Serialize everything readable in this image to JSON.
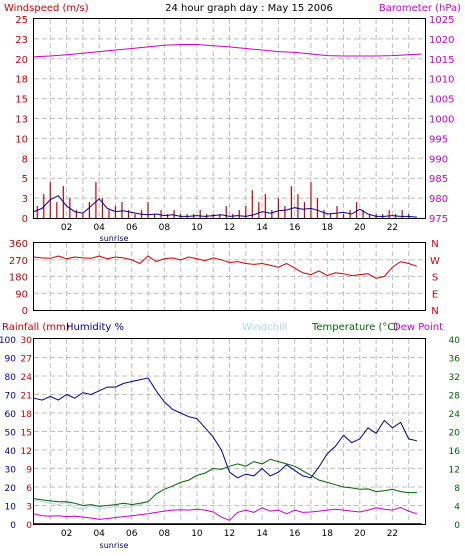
{
  "chart_data": [
    {
      "type": "line",
      "title": "24 hour graph day : May 15 2006",
      "ylabel_left": "Windspeed (m/s)",
      "ylabel_right": "Barometer (hPa)",
      "x_ticks": [
        "02",
        "04",
        "06",
        "08",
        "10",
        "12",
        "14",
        "16",
        "18",
        "20",
        "22"
      ],
      "x_annotation": "sunrise",
      "y_left_ticks": [
        "25",
        "23",
        "20",
        "18",
        "15",
        "13",
        "10",
        "8",
        "5",
        "3",
        "0"
      ],
      "y_left_range": [
        0,
        25
      ],
      "y_right_ticks": [
        "1025",
        "1020",
        "1015",
        "1010",
        "1005",
        "1000",
        "995",
        "990",
        "985",
        "980",
        "975"
      ],
      "y_right_range": [
        975,
        1025
      ],
      "colors": {
        "windspeed": "#cc0000",
        "average": "#000099",
        "barometer": "#cc00cc"
      },
      "grid": true,
      "series": [
        {
          "name": "Windspeed (m/s)",
          "axis": "left",
          "color": "#cc0000",
          "style": "bars",
          "x": [
            0.2,
            0.6,
            1.0,
            1.4,
            1.8,
            2.2,
            2.6,
            3.0,
            3.4,
            3.8,
            4.2,
            4.6,
            5.0,
            5.4,
            5.8,
            6.2,
            6.6,
            7.0,
            7.4,
            7.8,
            8.2,
            8.6,
            9.0,
            9.4,
            9.8,
            10.2,
            10.6,
            11.0,
            11.4,
            11.8,
            12.2,
            12.6,
            13.0,
            13.4,
            13.8,
            14.2,
            14.6,
            15.0,
            15.4,
            15.8,
            16.2,
            16.6,
            17.0,
            17.4,
            17.8,
            18.2,
            18.6,
            19.0,
            19.4,
            19.8,
            20.2,
            20.6,
            21.0,
            21.4,
            21.8,
            22.2,
            22.6,
            23.0
          ],
          "values": [
            1.5,
            3.0,
            4.5,
            2.0,
            4.0,
            2.5,
            1.0,
            0.5,
            2.0,
            4.5,
            2.5,
            1.0,
            1.5,
            2.0,
            1.0,
            0.5,
            1.0,
            2.0,
            0.5,
            1.0,
            0.5,
            1.0,
            0.5,
            0.5,
            0.5,
            1.0,
            0.5,
            0.5,
            0.5,
            1.5,
            0.5,
            1.0,
            1.5,
            3.5,
            2.0,
            3.0,
            1.0,
            2.5,
            1.5,
            4.0,
            3.0,
            2.0,
            4.5,
            2.5,
            1.0,
            0.5,
            1.5,
            0.5,
            1.0,
            2.0,
            1.0,
            0.5,
            0.5,
            0.5,
            1.0,
            0.5,
            1.0,
            0.5
          ]
        },
        {
          "name": "Average windspeed",
          "axis": "left",
          "color": "#000099",
          "style": "line",
          "x": [
            0,
            0.5,
            1,
            1.5,
            2,
            2.5,
            3,
            3.5,
            4,
            4.5,
            5,
            5.5,
            6,
            6.5,
            7,
            7.5,
            8,
            8.5,
            9,
            9.5,
            10,
            10.5,
            11,
            11.5,
            12,
            12.5,
            13,
            13.5,
            14,
            14.5,
            15,
            15.5,
            16,
            16.5,
            17,
            17.5,
            18,
            18.5,
            19,
            19.5,
            20,
            20.5,
            21,
            21.5,
            22,
            22.5,
            23,
            23.5
          ],
          "values": [
            0.8,
            1.2,
            2.3,
            2.8,
            1.5,
            0.8,
            0.6,
            1.5,
            2.4,
            1.2,
            0.8,
            0.9,
            0.7,
            0.5,
            0.4,
            0.5,
            0.3,
            0.4,
            0.2,
            0.2,
            0.3,
            0.2,
            0.3,
            0.4,
            0.2,
            0.3,
            0.2,
            0.4,
            0.8,
            0.6,
            0.9,
            1.0,
            1.3,
            1.1,
            1.2,
            0.9,
            0.5,
            0.6,
            0.7,
            0.5,
            1.1,
            0.5,
            0.2,
            0.2,
            0.3,
            0.2,
            0.2,
            0.1
          ]
        },
        {
          "name": "Barometer (hPa)",
          "axis": "right",
          "color": "#cc00cc",
          "style": "line",
          "x": [
            0,
            1,
            2,
            3,
            4,
            5,
            6,
            7,
            8,
            9,
            10,
            11,
            12,
            13,
            14,
            15,
            16,
            17,
            18,
            19,
            20,
            21,
            22,
            23,
            23.8
          ],
          "values": [
            1015.5,
            1015.7,
            1016.0,
            1016.4,
            1016.8,
            1017.2,
            1017.6,
            1018.0,
            1018.4,
            1018.6,
            1018.6,
            1018.3,
            1018.0,
            1017.6,
            1017.2,
            1016.8,
            1016.6,
            1016.2,
            1015.8,
            1015.7,
            1015.7,
            1015.7,
            1015.8,
            1016.0,
            1016.2
          ]
        }
      ]
    },
    {
      "type": "line",
      "x_ticks": [
        "02",
        "04",
        "06",
        "08",
        "10",
        "12",
        "14",
        "16",
        "18",
        "20",
        "22"
      ],
      "y_left_ticks": [
        "360",
        "270",
        "180",
        "90",
        "0"
      ],
      "y_left_range": [
        0,
        360
      ],
      "y_right_ticks": [
        "N",
        "W",
        "S",
        "E",
        "N"
      ],
      "grid": true,
      "series": [
        {
          "name": "Wind direction",
          "color": "#cc0000",
          "x": [
            0,
            0.5,
            1,
            1.5,
            2,
            2.5,
            3,
            3.5,
            4,
            4.5,
            5,
            5.5,
            6,
            6.5,
            7,
            7.5,
            8,
            8.5,
            9,
            9.5,
            10,
            10.5,
            11,
            11.5,
            12,
            12.5,
            13,
            13.5,
            14,
            14.5,
            15,
            15.5,
            16,
            16.5,
            17,
            17.5,
            18,
            18.5,
            19,
            19.5,
            20,
            20.5,
            21,
            21.5,
            22,
            22.5,
            23,
            23.5
          ],
          "values": [
            285,
            280,
            278,
            290,
            275,
            285,
            280,
            278,
            290,
            275,
            285,
            280,
            270,
            250,
            290,
            260,
            275,
            280,
            270,
            285,
            275,
            265,
            280,
            270,
            255,
            260,
            250,
            245,
            250,
            240,
            230,
            250,
            225,
            200,
            190,
            210,
            185,
            200,
            195,
            185,
            190,
            195,
            170,
            180,
            230,
            260,
            250,
            235
          ]
        }
      ]
    },
    {
      "type": "line",
      "left_labels": [
        "Rainfall (mm)",
        "Humidity %"
      ],
      "right_labels": [
        "Windchill",
        "Temperature (°C)",
        "Dew Point"
      ],
      "x_ticks": [
        "02",
        "04",
        "06",
        "08",
        "10",
        "12",
        "14",
        "16",
        "18",
        "20",
        "22"
      ],
      "x_annotation": "sunrise",
      "rain_ticks": [
        "30",
        "27",
        "24",
        "21",
        "18",
        "15",
        "12",
        "9",
        "6",
        "3",
        "0"
      ],
      "rain_range": [
        0,
        30
      ],
      "humidity_ticks": [
        "100",
        "90",
        "80",
        "70",
        "60",
        "50",
        "40",
        "30",
        "20",
        "10",
        "0"
      ],
      "humidity_range": [
        0,
        100
      ],
      "temp_ticks": [
        "40",
        "36",
        "32",
        "28",
        "24",
        "20",
        "16",
        "12",
        "8",
        "4",
        "0"
      ],
      "temp_range": [
        0,
        40
      ],
      "colors": {
        "rain": "#cc0000",
        "humidity": "#000099",
        "windchill": "#add8e6",
        "temperature": "#006600",
        "dewpoint": "#cc00cc"
      },
      "grid": true,
      "series": [
        {
          "name": "Humidity %",
          "axis": "humidity",
          "color": "#000099",
          "x": [
            0,
            0.5,
            1,
            1.5,
            2,
            2.5,
            3,
            3.5,
            4,
            4.5,
            5,
            5.5,
            6,
            6.5,
            7,
            7.5,
            8,
            8.5,
            9,
            9.5,
            10,
            10.5,
            11,
            11.5,
            12,
            12.5,
            13,
            13.5,
            14,
            14.5,
            15,
            15.5,
            16,
            16.5,
            17,
            17.5,
            18,
            18.5,
            19,
            19.5,
            20,
            20.5,
            21,
            21.5,
            22,
            22.5,
            23,
            23.5
          ],
          "values": [
            68,
            67,
            69,
            67,
            70,
            68,
            71,
            70,
            72,
            74,
            74,
            76,
            77,
            78,
            79,
            72,
            66,
            62,
            60,
            58,
            57,
            52,
            47,
            40,
            28,
            25,
            27,
            26,
            30,
            26,
            28,
            32,
            29,
            26,
            25,
            31,
            38,
            42,
            48,
            44,
            46,
            52,
            49,
            56,
            52,
            55,
            46,
            45
          ]
        },
        {
          "name": "Windchill",
          "axis": "temp",
          "color": "#add8e6",
          "x": [
            0,
            0.5,
            1,
            1.5,
            2,
            2.5,
            3,
            3.5,
            4,
            4.5,
            5,
            5.5,
            6,
            6.5,
            7
          ],
          "values": [
            5.2,
            4.8,
            4.5,
            4.2,
            4.8,
            3.5,
            3.2,
            4.0,
            3.2,
            3.5,
            3.8,
            3.5,
            3.8,
            4.2,
            5.0
          ]
        },
        {
          "name": "Temperature (°C)",
          "axis": "temp",
          "color": "#006600",
          "x": [
            0,
            0.5,
            1,
            1.5,
            2,
            2.5,
            3,
            3.5,
            4,
            4.5,
            5,
            5.5,
            6,
            6.5,
            7,
            7.5,
            8,
            8.5,
            9,
            9.5,
            10,
            10.5,
            11,
            11.5,
            12,
            12.5,
            13,
            13.5,
            14,
            14.5,
            15,
            15.5,
            16,
            16.5,
            17,
            17.5,
            18,
            18.5,
            19,
            19.5,
            20,
            20.5,
            21,
            21.5,
            22,
            22.5,
            23,
            23.5
          ],
          "values": [
            5.5,
            5.2,
            5.0,
            4.8,
            4.8,
            4.5,
            4.0,
            4.2,
            3.8,
            4.0,
            4.2,
            4.5,
            4.2,
            4.5,
            4.8,
            6.5,
            7.5,
            8.2,
            9.0,
            9.5,
            10.5,
            11.0,
            12.0,
            11.8,
            12.5,
            13.0,
            12.5,
            13.5,
            13.0,
            14.0,
            13.5,
            13.0,
            12.5,
            11.5,
            10.5,
            9.5,
            9.0,
            8.5,
            8.0,
            7.8,
            7.5,
            7.6,
            7.0,
            7.2,
            7.5,
            7.0,
            6.8,
            6.8
          ]
        },
        {
          "name": "Dew Point",
          "axis": "temp",
          "color": "#cc00cc",
          "x": [
            0,
            0.5,
            1,
            1.5,
            2,
            2.5,
            3,
            3.5,
            4,
            4.5,
            5,
            5.5,
            6,
            6.5,
            7,
            7.5,
            8,
            8.5,
            9,
            9.5,
            10,
            10.5,
            11,
            11.5,
            12,
            12.5,
            13,
            13.5,
            14,
            14.5,
            15,
            15.5,
            16,
            16.5,
            17,
            17.5,
            18,
            18.5,
            19,
            19.5,
            20,
            20.5,
            21,
            21.5,
            22,
            22.5,
            23,
            23.5
          ],
          "values": [
            2.2,
            1.8,
            1.7,
            1.8,
            1.6,
            1.7,
            1.5,
            1.3,
            1.0,
            1.2,
            1.4,
            1.6,
            1.8,
            2.0,
            2.2,
            2.5,
            2.8,
            3.0,
            3.1,
            3.0,
            3.2,
            3.0,
            2.6,
            1.5,
            0.8,
            2.5,
            3.0,
            2.5,
            3.5,
            2.8,
            3.0,
            2.2,
            3.0,
            2.5,
            2.6,
            2.8,
            3.0,
            3.2,
            3.0,
            2.8,
            2.6,
            3.0,
            3.5,
            3.2,
            3.0,
            3.6,
            2.8,
            2.2
          ]
        },
        {
          "name": "Rainfall (mm)",
          "axis": "rain",
          "color": "#cc0000",
          "x": [
            0,
            23.8
          ],
          "values": [
            0,
            0
          ]
        }
      ]
    }
  ]
}
